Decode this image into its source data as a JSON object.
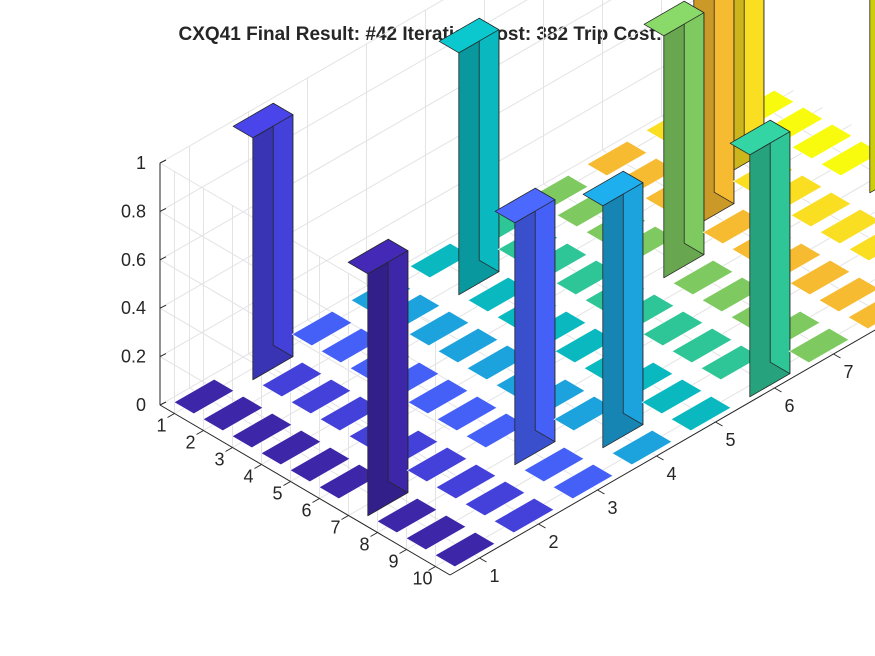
{
  "chart_data": {
    "type": "bar3",
    "title": "CXQ41 Final Result: #42 Iteration Cost: 382 Trip Cost: 5.3182",
    "rows": [
      1,
      2,
      3,
      4,
      5,
      6,
      7,
      8,
      9,
      10
    ],
    "columns": [
      1,
      2,
      3,
      4,
      5,
      6,
      7,
      8,
      9,
      10
    ],
    "zlim": [
      0,
      1
    ],
    "z_ticks": [
      "0",
      "0.2",
      "0.4",
      "0.6",
      "0.8",
      "1"
    ],
    "x_ticks": [
      "1",
      "2",
      "3",
      "4",
      "5",
      "6",
      "7",
      "8",
      "9",
      "10"
    ],
    "y_ticks": [
      "1",
      "2",
      "3",
      "4",
      "5",
      "6",
      "7",
      "8",
      "9",
      "10"
    ],
    "grid": true,
    "colormap": [
      "#3e26a8",
      "#4440da",
      "#4560f7",
      "#3084f2",
      "#1ca2dc",
      "#0ab9c0",
      "#2ec597",
      "#7fca60",
      "#c8c130",
      "#f6bb30",
      "#f9de21",
      "#f9fb0e"
    ],
    "values": [
      [
        0,
        1,
        0,
        0,
        0,
        0,
        0,
        0,
        0,
        0
      ],
      [
        0,
        0,
        0,
        0,
        1,
        0,
        0,
        0,
        0,
        0
      ],
      [
        0,
        0,
        0,
        0,
        0,
        0,
        0,
        0,
        1,
        0
      ],
      [
        0,
        0,
        0,
        0,
        0,
        0,
        0,
        1,
        0,
        0
      ],
      [
        0,
        0,
        0,
        0,
        0,
        0,
        1,
        0,
        0,
        0
      ],
      [
        0,
        0,
        0,
        0,
        0,
        0,
        0,
        0,
        0,
        1
      ],
      [
        1,
        0,
        0,
        0,
        0,
        0,
        0,
        0,
        0,
        0
      ],
      [
        0,
        0,
        1,
        0,
        0,
        0,
        0,
        0,
        0,
        0
      ],
      [
        0,
        0,
        0,
        1,
        0,
        0,
        0,
        0,
        0,
        0
      ],
      [
        0,
        0,
        0,
        0,
        0,
        1,
        0,
        0,
        0,
        0
      ]
    ]
  }
}
